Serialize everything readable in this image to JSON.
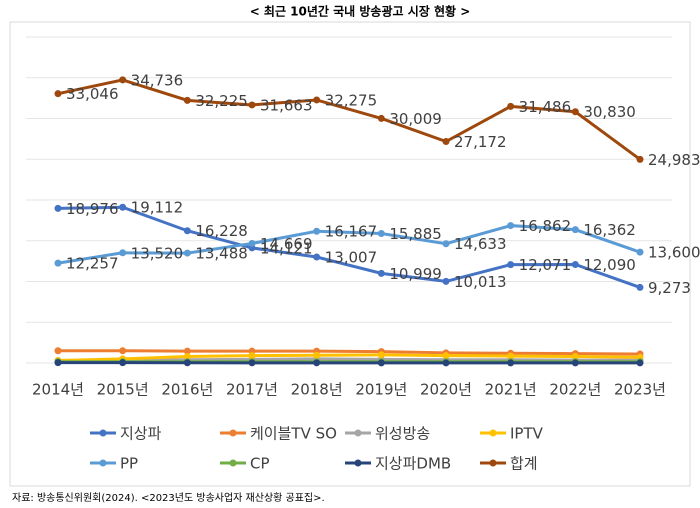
{
  "chart_data": {
    "type": "line",
    "title": "< 최근 10년간 국내 방송광고 시장 현황 >",
    "source": "자료: 방송통신위원회(2024). <2023년도 방송사업자 재산상황 공표집>.",
    "categories": [
      "2014년",
      "2015년",
      "2016년",
      "2017년",
      "2018년",
      "2019년",
      "2020년",
      "2021년",
      "2022년",
      "2023년"
    ],
    "ylim": [
      0,
      40000
    ],
    "yticks": [
      0,
      5000,
      10000,
      15000,
      20000,
      25000,
      30000,
      35000,
      40000
    ],
    "grid": true,
    "series": [
      {
        "name": "지상파",
        "color": "#4472c4",
        "values": [
          18976,
          19112,
          16228,
          14121,
          13007,
          10999,
          10013,
          12071,
          12090,
          9273
        ],
        "value_labels": [
          "18,976",
          "19,112",
          "16,228",
          "14,121",
          "13,007",
          "10,999",
          "10,013",
          "12,071",
          "12,090",
          "9,273"
        ]
      },
      {
        "name": "케이블TV SO",
        "color": "#ed7d31",
        "values": [
          1500,
          1500,
          1450,
          1450,
          1450,
          1400,
          1250,
          1200,
          1150,
          1100
        ]
      },
      {
        "name": "위성방송",
        "color": "#a5a5a5",
        "values": [
          300,
          350,
          400,
          450,
          500,
          450,
          400,
          400,
          350,
          350
        ]
      },
      {
        "name": "IPTV",
        "color": "#ffc000",
        "values": [
          300,
          500,
          800,
          900,
          950,
          1000,
          900,
          850,
          800,
          700
        ]
      },
      {
        "name": "PP",
        "color": "#5b9bd5",
        "values": [
          12257,
          13520,
          13488,
          14669,
          16167,
          15885,
          14633,
          16862,
          16362,
          13600
        ],
        "value_labels": [
          "12,257",
          "13,520",
          "13,488",
          "14,669",
          "16,167",
          "15,885",
          "14,633",
          "16,862",
          "16,362",
          "13,600"
        ]
      },
      {
        "name": "CP",
        "color": "#70ad47",
        "values": [
          150,
          150,
          150,
          150,
          150,
          150,
          150,
          150,
          150,
          150
        ]
      },
      {
        "name": "지상파DMB",
        "color": "#264478",
        "values": [
          50,
          40,
          30,
          20,
          20,
          15,
          10,
          10,
          10,
          10
        ]
      },
      {
        "name": "합계",
        "color": "#9e480e",
        "values": [
          33046,
          34736,
          32225,
          31663,
          32275,
          30009,
          27172,
          31486,
          30830,
          24983
        ],
        "value_labels": [
          "33,046",
          "34,736",
          "32,225",
          "31,663",
          "32,275",
          "30,009",
          "27,172",
          "31,486",
          "30,830",
          "24,983"
        ]
      }
    ]
  }
}
